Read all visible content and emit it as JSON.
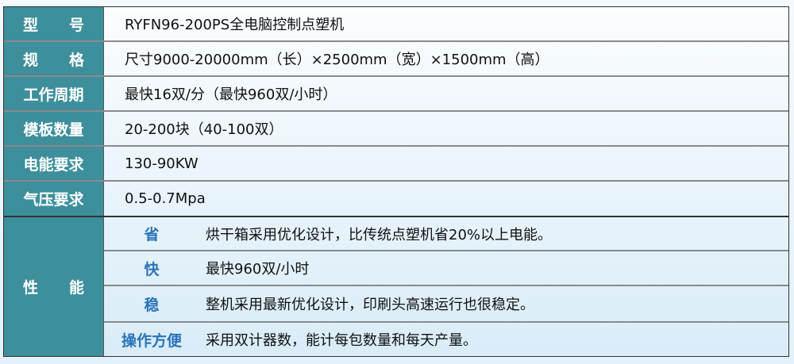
{
  "rows": [
    {
      "label": [
        "型",
        "号"
      ],
      "value": "RYFN96-200PS全电脑控制点塑机"
    },
    {
      "label": [
        "规",
        "格"
      ],
      "value": "尺寸9000-20000mm（长）×2500mm（宽）×1500mm（高）"
    },
    {
      "label": [
        "工作周期"
      ],
      "value": "最快16双/分（最快960双/小时）"
    },
    {
      "label": [
        "模板数量"
      ],
      "value": "20-200块（40-100双）"
    },
    {
      "label": [
        "电能要求"
      ],
      "value": "130-90KW"
    },
    {
      "label": [
        "气压要求"
      ],
      "value": "0.5-0.7Mpa"
    }
  ],
  "performance": {
    "label": [
      "性",
      "能"
    ],
    "items": [
      {
        "key": "省",
        "value": "烘干箱采用优化设计，比传统点塑机省20%以上电能。"
      },
      {
        "key": "快",
        "value": "最快960双/小时"
      },
      {
        "key": "稳",
        "value": "整机采用最新优化设计，印刷头高速运行也很稳定。"
      },
      {
        "key": "操作方便",
        "value": "采用双计器数，能计每包数量和每天产量。"
      }
    ]
  },
  "colors": {
    "label_bg": "#3d8f9c",
    "sub_label": "#2a74b8"
  }
}
